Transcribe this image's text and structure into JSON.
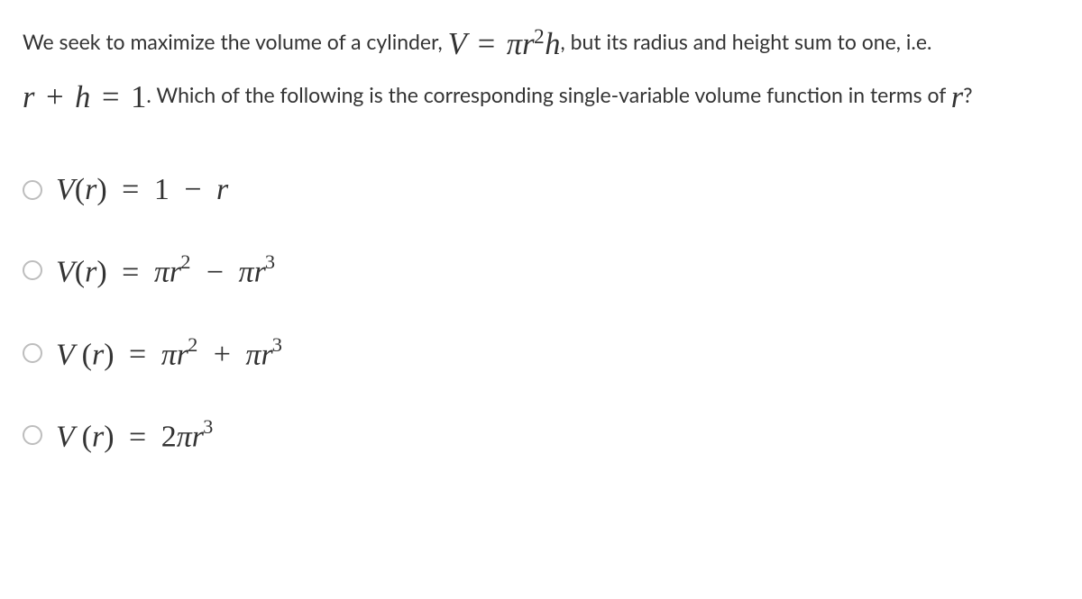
{
  "question": {
    "pre": "We seek to maximize the volume of a cylinder, ",
    "formula_v_html": "V <span class=\"op\">=</span> πr<span class=\"sup\">2</span>h",
    "mid1": ", but its radius and height sum to one, i.e. ",
    "formula_c_html": "r <span class=\"op\">+</span> h <span class=\"op\">=</span> <span style=\"font-style:normal\">1</span>",
    "mid2": ". Which of the following is the corresponding single-variable volume function in terms of ",
    "formula_r_html": "r",
    "post": "?",
    "fontsize": 23,
    "math_fontsize": 34,
    "text_color": "#333333",
    "radio_border_color": "#bdbdbd",
    "background_color": "#ffffff"
  },
  "options": [
    {
      "html": "V<span class=\"paren\">(</span>r<span class=\"paren\">)</span> <span class=\"op\">=</span> <span class=\"upr\">1</span> <span class=\"op\">−</span> r"
    },
    {
      "html": "V<span class=\"paren\">(</span>r<span class=\"paren\">)</span> <span class=\"op\">=</span> πr<span class=\"sup\">2</span> <span class=\"op\">−</span> πr<span class=\"sup\">3</span>"
    },
    {
      "html": "V <span class=\"paren\">(</span>r<span class=\"paren\">)</span> <span class=\"op\">=</span> πr<span class=\"sup\">2</span> <span class=\"op\">+</span> πr<span class=\"sup\">3</span>"
    },
    {
      "html": "V <span class=\"paren\">(</span>r<span class=\"paren\">)</span> <span class=\"op\">=</span> <span class=\"upr\">2</span>πr<span class=\"sup\">3</span>"
    }
  ]
}
